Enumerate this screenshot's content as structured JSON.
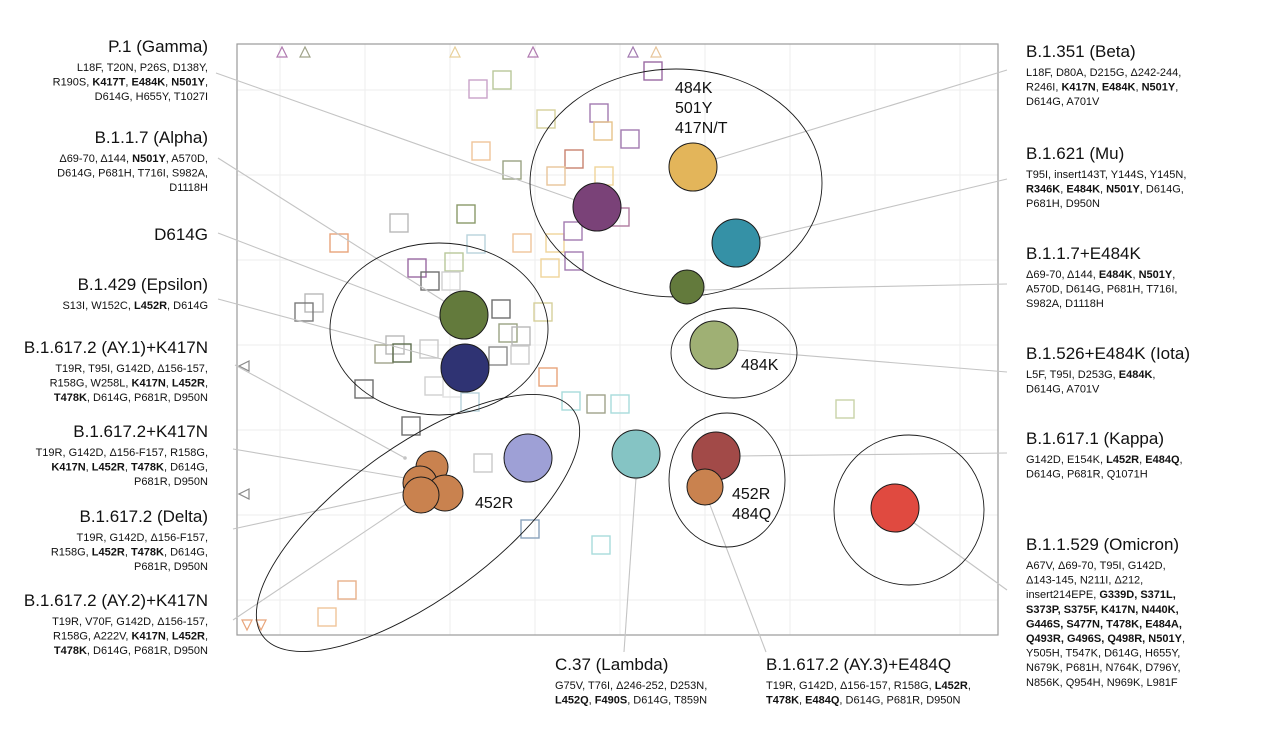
{
  "variants": [
    {
      "id": "gamma",
      "title": "P.1 (Gamma)",
      "lines": [
        [
          [
            "L18F, T20N, P26S, D138Y,",
            false
          ]
        ],
        [
          [
            "R190S, ",
            false
          ],
          [
            "K417T",
            true
          ],
          [
            ", ",
            false
          ],
          [
            "E484K",
            true
          ],
          [
            ", ",
            false
          ],
          [
            "N501Y",
            true
          ],
          [
            ",",
            false
          ]
        ],
        [
          [
            "D614G, H655Y, T1027I",
            false
          ]
        ]
      ],
      "color": "#7a4278"
    },
    {
      "id": "alpha",
      "title": "B.1.1.7 (Alpha)",
      "lines": [
        [
          [
            "Δ69-70, Δ144, ",
            false
          ],
          [
            "N501Y",
            true
          ],
          [
            ", A570D,",
            false
          ]
        ],
        [
          [
            "D614G, P681H, T716I, S982A,",
            false
          ]
        ],
        [
          [
            "D1118H",
            false
          ]
        ]
      ],
      "color": "#637a3c"
    },
    {
      "id": "d614g",
      "title": "D614G",
      "lines": [],
      "color": "#637a3c"
    },
    {
      "id": "epsilon",
      "title": "B.1.429 (Epsilon)",
      "lines": [
        [
          [
            "S13I, W152C, ",
            false
          ],
          [
            "L452R",
            true
          ],
          [
            ", D614G",
            false
          ]
        ]
      ],
      "color": "#2f3373"
    },
    {
      "id": "ay1",
      "title": "B.1.617.2 (AY.1)+K417N",
      "lines": [
        [
          [
            "T19R, T95I, G142D, Δ156-157,",
            false
          ]
        ],
        [
          [
            "R158G, W258L, ",
            false
          ],
          [
            "K417N",
            true
          ],
          [
            ", ",
            false
          ],
          [
            "L452R",
            true
          ],
          [
            ",",
            false
          ]
        ],
        [
          [
            "T478K",
            true
          ],
          [
            ", D614G, P681R, D950N",
            false
          ]
        ]
      ],
      "color": "#c9824f"
    },
    {
      "id": "delta_k417n",
      "title": "B.1.617.2+K417N",
      "lines": [
        [
          [
            "T19R, G142D, Δ156-F157, R158G,",
            false
          ]
        ],
        [
          [
            "K417N",
            true
          ],
          [
            ", ",
            false
          ],
          [
            "L452R",
            true
          ],
          [
            ", ",
            false
          ],
          [
            "T478K",
            true
          ],
          [
            ", D614G,",
            false
          ]
        ],
        [
          [
            "P681R, D950N",
            false
          ]
        ]
      ],
      "color": "#c9824f"
    },
    {
      "id": "delta",
      "title": "B.1.617.2 (Delta)",
      "lines": [
        [
          [
            "T19R, G142D, Δ156-F157,",
            false
          ]
        ],
        [
          [
            "R158G, ",
            false
          ],
          [
            "L452R",
            true
          ],
          [
            ", ",
            false
          ],
          [
            "T478K",
            true
          ],
          [
            ", D614G,",
            false
          ]
        ],
        [
          [
            "P681R, D950N",
            false
          ]
        ]
      ],
      "color": "#c9824f"
    },
    {
      "id": "ay2",
      "title": "B.1.617.2 (AY.2)+K417N",
      "lines": [
        [
          [
            "T19R, V70F, G142D, Δ156-157,",
            false
          ]
        ],
        [
          [
            "R158G, A222V, ",
            false
          ],
          [
            "K417N",
            true
          ],
          [
            ", ",
            false
          ],
          [
            "L452R",
            true
          ],
          [
            ",",
            false
          ]
        ],
        [
          [
            "T478K",
            true
          ],
          [
            ", D614G, P681R, D950N",
            false
          ]
        ]
      ],
      "color": "#c9824f"
    },
    {
      "id": "beta",
      "title": "B.1.351 (Beta)",
      "lines": [
        [
          [
            "L18F, D80A, D215G, Δ242-244,",
            false
          ]
        ],
        [
          [
            "R246I, ",
            false
          ],
          [
            "K417N",
            true
          ],
          [
            ", ",
            false
          ],
          [
            "E484K",
            true
          ],
          [
            ", ",
            false
          ],
          [
            "N501Y",
            true
          ],
          [
            ",",
            false
          ]
        ],
        [
          [
            "D614G, A701V",
            false
          ]
        ]
      ],
      "color": "#e3b55a"
    },
    {
      "id": "mu",
      "title": "B.1.621 (Mu)",
      "lines": [
        [
          [
            "T95I, insert143T, Y144S, Y145N,",
            false
          ]
        ],
        [
          [
            "R346K",
            true
          ],
          [
            ", ",
            false
          ],
          [
            "E484K",
            true
          ],
          [
            ", ",
            false
          ],
          [
            "N501Y",
            true
          ],
          [
            ", D614G,",
            false
          ]
        ],
        [
          [
            "P681H, D950N",
            false
          ]
        ]
      ],
      "color": "#3591a6"
    },
    {
      "id": "alpha_e484k",
      "title": "B.1.1.7+E484K",
      "lines": [
        [
          [
            "Δ69-70, Δ144, ",
            false
          ],
          [
            "E484K",
            true
          ],
          [
            ", ",
            false
          ],
          [
            "N501Y",
            true
          ],
          [
            ",",
            false
          ]
        ],
        [
          [
            "A570D, D614G, P681H, T716I,",
            false
          ]
        ],
        [
          [
            "S982A, D1118H",
            false
          ]
        ]
      ],
      "color": "#637a3c"
    },
    {
      "id": "iota",
      "title": "B.1.526+E484K (Iota)",
      "lines": [
        [
          [
            "L5F, T95I, D253G, ",
            false
          ],
          [
            "E484K",
            true
          ],
          [
            ",",
            false
          ]
        ],
        [
          [
            "D614G, A701V",
            false
          ]
        ]
      ],
      "color": "#9fb074"
    },
    {
      "id": "kappa",
      "title": "B.1.617.1 (Kappa)",
      "lines": [
        [
          [
            "G142D, E154K, ",
            false
          ],
          [
            "L452R",
            true
          ],
          [
            ", ",
            false
          ],
          [
            "E484Q",
            true
          ],
          [
            ",",
            false
          ]
        ],
        [
          [
            "D614G, P681R, Q1071H",
            false
          ]
        ]
      ],
      "color": "#a24a48"
    },
    {
      "id": "omicron",
      "title": "B.1.1.529 (Omicron)",
      "lines": [
        [
          [
            "A67V, Δ69-70, T95I, G142D,",
            false
          ]
        ],
        [
          [
            "Δ143-145, N211I, Δ212,",
            false
          ]
        ],
        [
          [
            "insert214EPE, ",
            false
          ],
          [
            "G339D, S371L,",
            true
          ]
        ],
        [
          [
            "S373P, S375F, K417N, N440K,",
            true
          ]
        ],
        [
          [
            "G446S, S477N, T478K, E484A,",
            true
          ]
        ],
        [
          [
            "Q493R, G496S, Q498R, N501Y",
            true
          ],
          [
            ",",
            false
          ]
        ],
        [
          [
            "Y505H, T547K, D614G, H655Y,",
            false
          ]
        ],
        [
          [
            "N679K, P681H, N764K, D796Y,",
            false
          ]
        ],
        [
          [
            "N856K, Q954H, N969K, L981F",
            false
          ]
        ]
      ],
      "color": "#e04a40"
    },
    {
      "id": "lambda",
      "title": "C.37 (Lambda)",
      "lines": [
        [
          [
            "G75V, T76I, Δ246-252, D253N,",
            false
          ]
        ],
        [
          [
            "L452Q",
            true
          ],
          [
            ", ",
            false
          ],
          [
            "F490S",
            true
          ],
          [
            ", D614G, T859N",
            false
          ]
        ]
      ],
      "color": "#85c4c4"
    },
    {
      "id": "ay3",
      "title": "B.1.617.2 (AY.3)+E484Q",
      "lines": [
        [
          [
            "T19R, G142D, Δ156-157, R158G, ",
            false
          ],
          [
            "L452R",
            true
          ],
          [
            ",",
            false
          ]
        ],
        [
          [
            "T478K",
            true
          ],
          [
            ", ",
            false
          ],
          [
            "E484Q",
            true
          ],
          [
            ", D614G, P681R, D950N",
            false
          ]
        ]
      ],
      "color": "#c9824f"
    },
    {
      "id": "b1617",
      "title": "",
      "lines": [],
      "color": "#c9824f"
    }
  ],
  "cluster_labels": [
    {
      "id": "c484k501y",
      "lines": [
        "484K",
        "501Y",
        "417N/T"
      ]
    },
    {
      "id": "c484k",
      "lines": [
        "484K"
      ]
    },
    {
      "id": "c452r",
      "lines": [
        "452R"
      ]
    },
    {
      "id": "c452r484q",
      "lines": [
        "452R",
        "484Q"
      ]
    }
  ],
  "colors": {
    "frame": "#9a9a9a",
    "grid": "#eeeeee",
    "leader": "#c4c4c4",
    "ellipse": "#1a1a1a"
  }
}
